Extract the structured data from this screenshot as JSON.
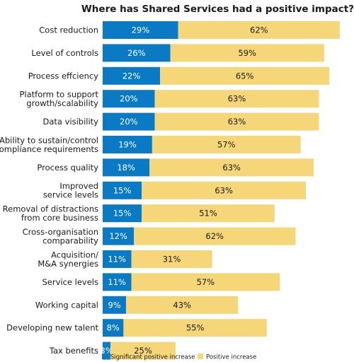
{
  "chart_data": {
    "type": "bar",
    "orientation": "horizontal",
    "stacked": true,
    "title": "Where has Shared Services had a positive impact?",
    "categories": [
      [
        "Cost reduction"
      ],
      [
        "Level of controls"
      ],
      [
        "Process effciency"
      ],
      [
        "Platform to support",
        "growth/scalability"
      ],
      [
        "Data visibility"
      ],
      [
        "Ability to sustain/control",
        "compliance requirements"
      ],
      [
        "Process quality"
      ],
      [
        "Improved",
        "service levels"
      ],
      [
        "Removal of distractions",
        "from core business"
      ],
      [
        "Cross-organisation",
        "comparability"
      ],
      [
        "Acquisition/",
        "M&A synergies"
      ],
      [
        "Service levels"
      ],
      [
        "Working capital"
      ],
      [
        "Developing new talent"
      ],
      [
        "Tax benefits"
      ]
    ],
    "series": [
      {
        "name": "Significant positive increase",
        "color": "#0a7ac4",
        "text_color": "#ffffff",
        "values": [
          29,
          26,
          22,
          20,
          20,
          19,
          18,
          15,
          15,
          12,
          11,
          11,
          9,
          8,
          3
        ]
      },
      {
        "name": "Positive increase",
        "color": "#f5d678",
        "text_color": "#1a1a1a",
        "values": [
          62,
          59,
          65,
          63,
          63,
          57,
          63,
          63,
          51,
          62,
          31,
          57,
          43,
          55,
          25
        ]
      }
    ],
    "value_suffix": "%",
    "legend_position": "bottom",
    "grid": false
  }
}
